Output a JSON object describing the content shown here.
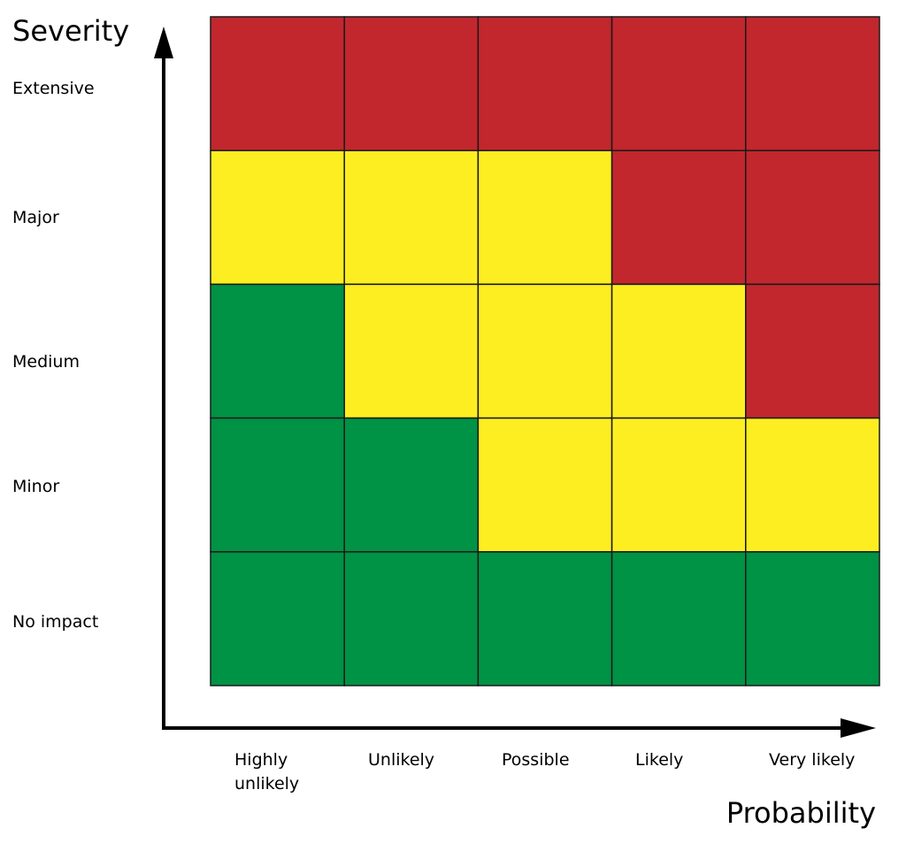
{
  "chart_data": {
    "type": "heatmap",
    "title": "",
    "ylabel": "Severity",
    "xlabel": "Probability",
    "x_categories": [
      [
        "Highly",
        "unlikely"
      ],
      [
        "Unlikely"
      ],
      [
        "Possible"
      ],
      [
        "Likely"
      ],
      [
        "Very likely"
      ]
    ],
    "y_categories": [
      "Extensive",
      "Major",
      "Medium",
      "Minor",
      "No impact"
    ],
    "levels": {
      "red": "#c1272d",
      "yellow": "#fcee21",
      "green": "#009245"
    },
    "grid_line_color": "#1a1a1a",
    "matrix": [
      [
        "red",
        "red",
        "red",
        "red",
        "red"
      ],
      [
        "yellow",
        "yellow",
        "yellow",
        "red",
        "red"
      ],
      [
        "green",
        "yellow",
        "yellow",
        "yellow",
        "red"
      ],
      [
        "green",
        "green",
        "yellow",
        "yellow",
        "yellow"
      ],
      [
        "green",
        "green",
        "green",
        "green",
        "green"
      ]
    ]
  }
}
